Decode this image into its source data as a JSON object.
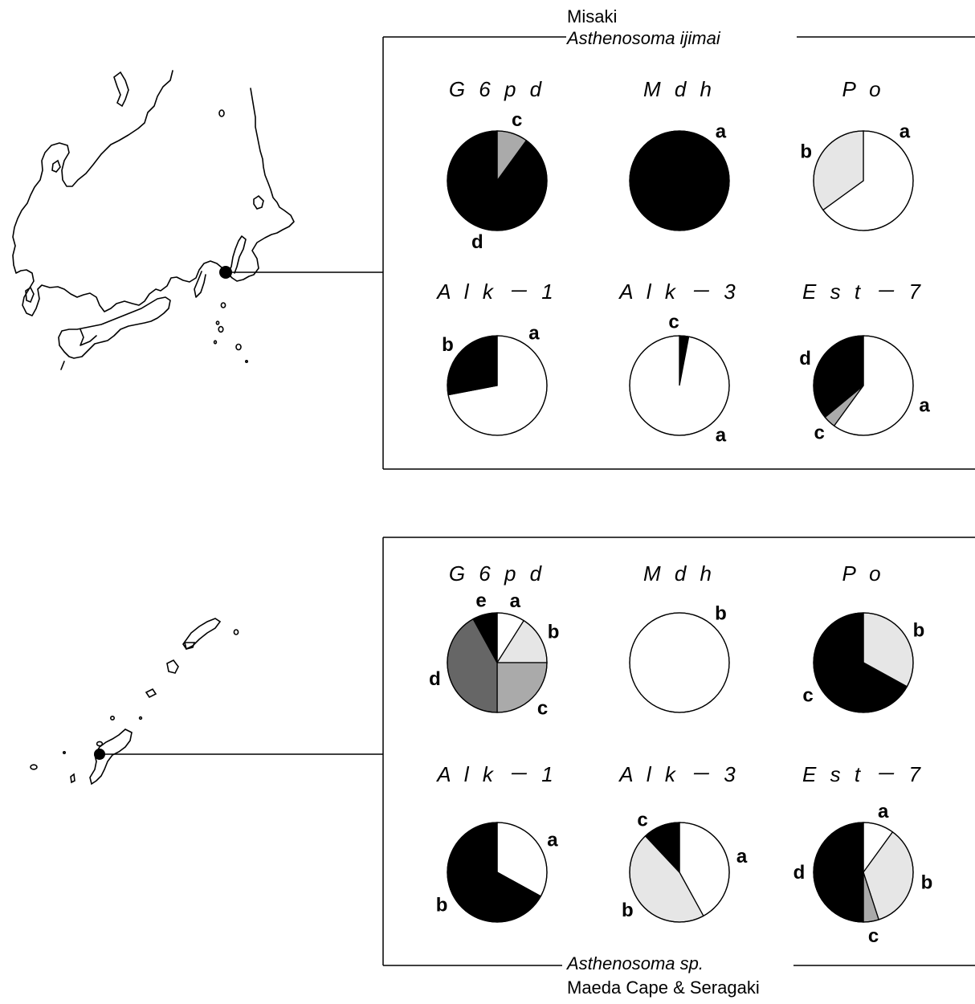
{
  "chart_data": [
    {
      "type": "pie",
      "panel": "top",
      "population": "Misaki",
      "species": "Asthenosoma ijimai",
      "charts": [
        {
          "locus": "G 6 p d",
          "slices": [
            {
              "allele": "c",
              "value": 0.1,
              "color": "#aaaaaa"
            },
            {
              "allele": "d",
              "value": 0.9,
              "color": "#000000"
            }
          ]
        },
        {
          "locus": "M d h",
          "slices": [
            {
              "allele": "a",
              "value": 1.0,
              "color": "#000000"
            }
          ]
        },
        {
          "locus": "P o",
          "slices": [
            {
              "allele": "a",
              "value": 0.65,
              "color": "#ffffff"
            },
            {
              "allele": "b",
              "value": 0.35,
              "color": "#e6e6e6"
            }
          ]
        },
        {
          "locus": "A l k － 1",
          "slices": [
            {
              "allele": "a",
              "value": 0.72,
              "color": "#ffffff"
            },
            {
              "allele": "b",
              "value": 0.28,
              "color": "#000000"
            }
          ]
        },
        {
          "locus": "A l k － 3",
          "slices": [
            {
              "allele": "a",
              "value": 0.97,
              "color": "#ffffff"
            },
            {
              "allele": "c",
              "value": 0.03,
              "color": "#000000"
            }
          ]
        },
        {
          "locus": "E s t － 7",
          "slices": [
            {
              "allele": "a",
              "value": 0.6,
              "color": "#ffffff"
            },
            {
              "allele": "c",
              "value": 0.04,
              "color": "#aaaaaa"
            },
            {
              "allele": "d",
              "value": 0.36,
              "color": "#000000"
            }
          ]
        }
      ]
    },
    {
      "type": "pie",
      "panel": "bottom",
      "population": "Maeda Cape & Seragaki",
      "species": "Asthenosoma sp.",
      "charts": [
        {
          "locus": "G 6 p d",
          "slices": [
            {
              "allele": "a",
              "value": 0.09,
              "color": "#ffffff"
            },
            {
              "allele": "b",
              "value": 0.16,
              "color": "#e6e6e6"
            },
            {
              "allele": "c",
              "value": 0.25,
              "color": "#aaaaaa"
            },
            {
              "allele": "d",
              "value": 0.42,
              "color": "#666666"
            },
            {
              "allele": "e",
              "value": 0.08,
              "color": "#000000"
            }
          ]
        },
        {
          "locus": "M d h",
          "slices": [
            {
              "allele": "b",
              "value": 1.0,
              "color": "#ffffff"
            }
          ]
        },
        {
          "locus": "P o",
          "slices": [
            {
              "allele": "b",
              "value": 0.33,
              "color": "#e6e6e6"
            },
            {
              "allele": "c",
              "value": 0.67,
              "color": "#000000"
            }
          ]
        },
        {
          "locus": "A l k － 1",
          "slices": [
            {
              "allele": "a",
              "value": 0.33,
              "color": "#ffffff"
            },
            {
              "allele": "b",
              "value": 0.67,
              "color": "#000000"
            }
          ]
        },
        {
          "locus": "A l k － 3",
          "slices": [
            {
              "allele": "a",
              "value": 0.42,
              "color": "#ffffff"
            },
            {
              "allele": "b",
              "value": 0.46,
              "color": "#e6e6e6"
            },
            {
              "allele": "c",
              "value": 0.12,
              "color": "#000000"
            }
          ]
        },
        {
          "locus": "E s t － 7",
          "slices": [
            {
              "allele": "a",
              "value": 0.1,
              "color": "#ffffff"
            },
            {
              "allele": "b",
              "value": 0.35,
              "color": "#e6e6e6"
            },
            {
              "allele": "c",
              "value": 0.05,
              "color": "#aaaaaa"
            },
            {
              "allele": "d",
              "value": 0.5,
              "color": "#000000"
            }
          ]
        }
      ]
    }
  ]
}
